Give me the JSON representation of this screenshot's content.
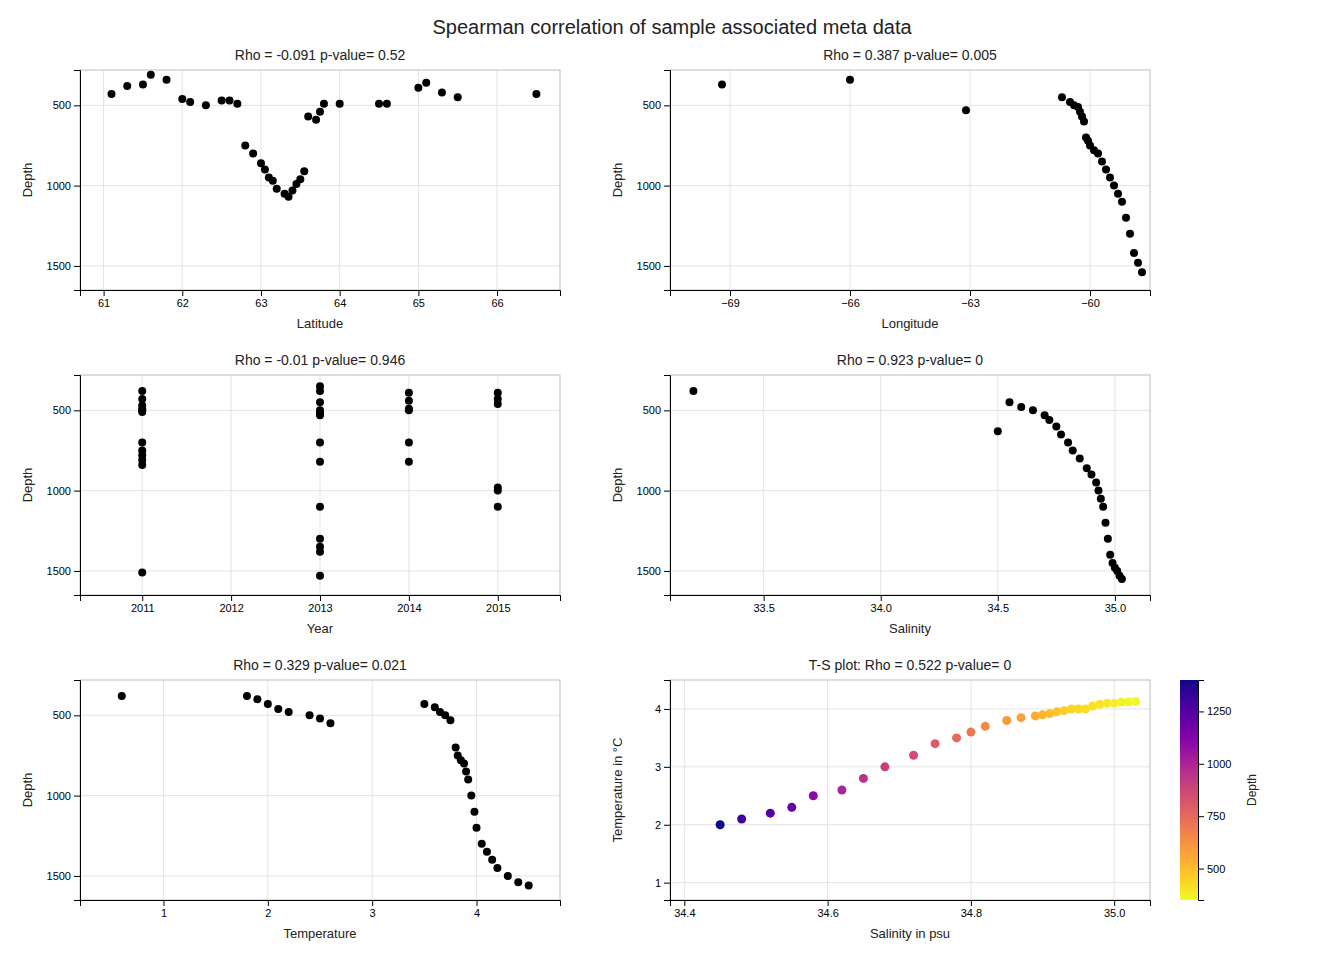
{
  "chart_data": [
    {
      "type": "scatter",
      "title": "Spearman correlation of sample associated meta data",
      "subtitle": "Rho = -0.091  p-value= 0.52",
      "xlabel": "Latitude",
      "ylabel": "Depth",
      "xlim": [
        60.7,
        66.8
      ],
      "ylim": [
        1650,
        280
      ],
      "xticks": [
        61,
        62,
        63,
        64,
        65,
        66
      ],
      "yticks": [
        500,
        1000,
        1500
      ],
      "grid": true,
      "color": "black",
      "x": [
        61.1,
        61.3,
        61.5,
        61.6,
        61.8,
        62.0,
        62.1,
        62.3,
        62.5,
        62.6,
        62.7,
        62.8,
        62.9,
        63.0,
        63.05,
        63.1,
        63.15,
        63.2,
        63.3,
        63.35,
        63.4,
        63.45,
        63.5,
        63.55,
        63.6,
        63.7,
        63.75,
        63.8,
        64.0,
        64.5,
        64.6,
        65.0,
        65.1,
        65.3,
        65.5,
        66.5
      ],
      "y": [
        430,
        380,
        370,
        310,
        340,
        460,
        480,
        500,
        470,
        470,
        490,
        750,
        800,
        860,
        900,
        950,
        970,
        1020,
        1050,
        1070,
        1030,
        990,
        960,
        910,
        570,
        590,
        540,
        490,
        490,
        490,
        490,
        390,
        360,
        420,
        450,
        430
      ]
    },
    {
      "type": "scatter",
      "subtitle": "Rho = 0.387  p-value= 0.005",
      "xlabel": "Longitude",
      "ylabel": "Depth",
      "xlim": [
        -70.5,
        -58.5
      ],
      "ylim": [
        1650,
        280
      ],
      "xticks": [
        {
          "value": -69,
          "label": "−69"
        },
        {
          "value": -66,
          "label": "−66"
        },
        {
          "value": -63,
          "label": "−63"
        },
        {
          "value": -60,
          "label": "−60"
        }
      ],
      "yticks": [
        500,
        1000,
        1500
      ],
      "grid": true,
      "color": "black",
      "x": [
        -69.2,
        -66.0,
        -63.1,
        -60.7,
        -60.5,
        -60.4,
        -60.3,
        -60.25,
        -60.2,
        -60.15,
        -60.1,
        -60.05,
        -60.0,
        -59.9,
        -59.8,
        -59.7,
        -59.6,
        -59.5,
        -59.4,
        -59.3,
        -59.2,
        -59.1,
        -59.0,
        -58.9,
        -58.8,
        -58.7
      ],
      "y": [
        370,
        340,
        530,
        450,
        480,
        500,
        510,
        540,
        570,
        600,
        700,
        720,
        750,
        780,
        800,
        850,
        900,
        950,
        1000,
        1050,
        1100,
        1200,
        1300,
        1420,
        1480,
        1540
      ]
    },
    {
      "type": "scatter",
      "subtitle": "Rho = -0.01  p-value= 0.946",
      "xlabel": "Year",
      "ylabel": "Depth",
      "xlim": [
        2010.3,
        2015.7
      ],
      "ylim": [
        1650,
        280
      ],
      "xticks": [
        2011,
        2012,
        2013,
        2014,
        2015
      ],
      "yticks": [
        500,
        1000,
        1500
      ],
      "grid": true,
      "color": "black",
      "x": [
        2011,
        2011,
        2011,
        2011,
        2011,
        2011,
        2011,
        2011,
        2011,
        2011,
        2011,
        2011,
        2013,
        2013,
        2013,
        2013,
        2013,
        2013,
        2013,
        2013,
        2013,
        2013,
        2013,
        2013,
        2013,
        2013,
        2014,
        2014,
        2014,
        2014,
        2014,
        2014,
        2015,
        2015,
        2015,
        2015,
        2015,
        2015
      ],
      "y": [
        380,
        430,
        470,
        490,
        500,
        510,
        700,
        750,
        780,
        810,
        840,
        1510,
        350,
        380,
        450,
        500,
        510,
        520,
        530,
        700,
        820,
        1100,
        1300,
        1350,
        1380,
        1530,
        390,
        440,
        490,
        500,
        700,
        820,
        390,
        430,
        460,
        980,
        1000,
        1100
      ]
    },
    {
      "type": "scatter",
      "subtitle": "Rho = 0.923  p-value= 0",
      "xlabel": "Salinity",
      "ylabel": "Depth",
      "xlim": [
        33.1,
        35.15
      ],
      "ylim": [
        1650,
        280
      ],
      "xticks": [
        33.5,
        {
          "value": 34.0,
          "label": "34.0"
        },
        34.5,
        {
          "value": 35.0,
          "label": "35.0"
        }
      ],
      "yticks": [
        500,
        1000,
        1500
      ],
      "grid": true,
      "color": "black",
      "x": [
        33.2,
        34.5,
        34.55,
        34.6,
        34.65,
        34.7,
        34.72,
        34.75,
        34.77,
        34.8,
        34.82,
        34.85,
        34.88,
        34.9,
        34.92,
        34.93,
        34.94,
        34.95,
        34.96,
        34.97,
        34.98,
        34.99,
        35.0,
        35.01,
        35.02,
        35.03
      ],
      "y": [
        380,
        630,
        450,
        480,
        500,
        530,
        560,
        600,
        650,
        700,
        750,
        800,
        860,
        900,
        950,
        1000,
        1050,
        1100,
        1200,
        1300,
        1400,
        1450,
        1480,
        1500,
        1530,
        1550
      ]
    },
    {
      "type": "scatter",
      "subtitle": "Rho = 0.329  p-value= 0.021",
      "xlabel": "Temperature",
      "ylabel": "Depth",
      "xlim": [
        0.2,
        4.8
      ],
      "ylim": [
        1650,
        280
      ],
      "xticks": [
        1,
        2,
        3,
        4
      ],
      "yticks": [
        500,
        1000,
        1500
      ],
      "grid": true,
      "color": "black",
      "x": [
        0.6,
        1.8,
        1.9,
        2.0,
        2.1,
        2.2,
        2.4,
        2.5,
        2.6,
        3.5,
        3.6,
        3.65,
        3.7,
        3.75,
        3.8,
        3.82,
        3.85,
        3.88,
        3.9,
        3.92,
        3.95,
        3.98,
        4.0,
        4.05,
        4.1,
        4.15,
        4.2,
        4.3,
        4.4,
        4.5
      ],
      "y": [
        380,
        380,
        400,
        430,
        460,
        480,
        500,
        520,
        550,
        430,
        450,
        480,
        500,
        530,
        700,
        750,
        780,
        800,
        850,
        900,
        1000,
        1100,
        1200,
        1300,
        1350,
        1400,
        1450,
        1500,
        1540,
        1560
      ]
    },
    {
      "type": "scatter",
      "subtitle": "T-S plot: Rho = 0.522  p-value= 0",
      "xlabel": "Salinity in psu",
      "ylabel": "Temperature in °C",
      "xlim": [
        34.38,
        35.05
      ],
      "ylim": [
        0.7,
        4.5
      ],
      "xticks": [
        34.4,
        34.6,
        34.8,
        {
          "value": 35.0,
          "label": "35.0"
        }
      ],
      "yticks": [
        1,
        2,
        3,
        4
      ],
      "grid": true,
      "color": "plasma_r",
      "x": [
        34.45,
        34.48,
        34.52,
        34.55,
        34.58,
        34.62,
        34.65,
        34.68,
        34.72,
        34.75,
        34.78,
        34.8,
        34.82,
        34.85,
        34.87,
        34.89,
        34.9,
        34.91,
        34.92,
        34.93,
        34.94,
        34.95,
        34.96,
        34.97,
        34.98,
        34.99,
        35.0,
        35.01,
        35.02,
        35.03
      ],
      "y": [
        2.0,
        2.1,
        2.2,
        2.3,
        2.5,
        2.6,
        2.8,
        3.0,
        3.2,
        3.4,
        3.5,
        3.6,
        3.7,
        3.8,
        3.85,
        3.88,
        3.9,
        3.92,
        3.95,
        3.97,
        4.0,
        4.0,
        4.0,
        4.05,
        4.08,
        4.1,
        4.1,
        4.12,
        4.12,
        4.13
      ],
      "depth": [
        1400,
        1300,
        1250,
        1200,
        1100,
        1000,
        950,
        900,
        850,
        800,
        750,
        700,
        650,
        600,
        580,
        550,
        520,
        500,
        480,
        460,
        440,
        430,
        420,
        410,
        400,
        390,
        380,
        370,
        360,
        350
      ],
      "color_label": "Depth",
      "color_range": [
        350,
        1400
      ],
      "color_ticks": [
        500,
        750,
        1000,
        1250
      ]
    }
  ]
}
